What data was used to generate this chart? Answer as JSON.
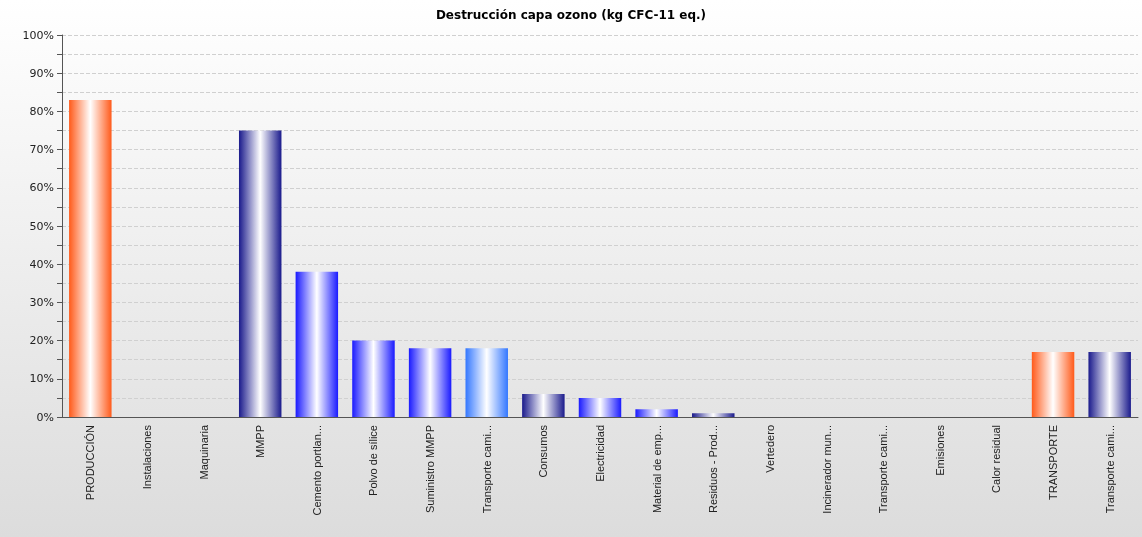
{
  "chart_data": {
    "type": "bar",
    "title": "Destrucción capa ozono (kg CFC-11 eq.)",
    "categories": [
      "PRODUCCIÓN",
      "Instalaciones",
      "Maquinaria",
      "MMPP",
      "Cemento portlan...",
      "Polvo de sílice",
      "Suministro MMPP",
      "Transporte cami...",
      "Consumos",
      "Electricidad",
      "Material de emp...",
      "Residuos - Prod...",
      "Vertedero",
      "Incinerador mun...",
      "Transporte cami...",
      "Emisiones",
      "Calor residual",
      "TRANSPORTE",
      "Transporte cami..."
    ],
    "values": [
      83,
      0,
      0,
      75,
      38,
      20,
      18,
      18,
      6,
      5,
      2,
      1,
      0,
      0,
      0,
      0,
      0,
      17,
      17
    ],
    "colors": [
      "#ff5a1a",
      "#1a1a8c",
      "#1a1a8c",
      "#1a1a8c",
      "#1a1aff",
      "#1a1aff",
      "#1a1aff",
      "#3377ff",
      "#1a1a8c",
      "#1a1aff",
      "#1a1aff",
      "#1a1a8c",
      "#1a1a8c",
      "#1a1a8c",
      "#1a1a8c",
      "#1a1a8c",
      "#1a1a8c",
      "#ff5a1a",
      "#1a1a8c"
    ],
    "ylim": [
      0,
      100
    ],
    "yticks": [
      {
        "value": 0,
        "label": "0%"
      },
      {
        "value": 5,
        "label": null
      },
      {
        "value": 10,
        "label": "10%"
      },
      {
        "value": 15,
        "label": null
      },
      {
        "value": 20,
        "label": "20%"
      },
      {
        "value": 25,
        "label": null
      },
      {
        "value": 30,
        "label": "30%"
      },
      {
        "value": 35,
        "label": null
      },
      {
        "value": 40,
        "label": "40%"
      },
      {
        "value": 45,
        "label": null
      },
      {
        "value": 50,
        "label": "50%"
      },
      {
        "value": 55,
        "label": null
      },
      {
        "value": 60,
        "label": "60%"
      },
      {
        "value": 65,
        "label": null
      },
      {
        "value": 70,
        "label": "70%"
      },
      {
        "value": 75,
        "label": null
      },
      {
        "value": 80,
        "label": "80%"
      },
      {
        "value": 85,
        "label": null
      },
      {
        "value": 90,
        "label": "90%"
      },
      {
        "value": 95,
        "label": null
      },
      {
        "value": 100,
        "label": "100%"
      }
    ],
    "grid": "y"
  }
}
